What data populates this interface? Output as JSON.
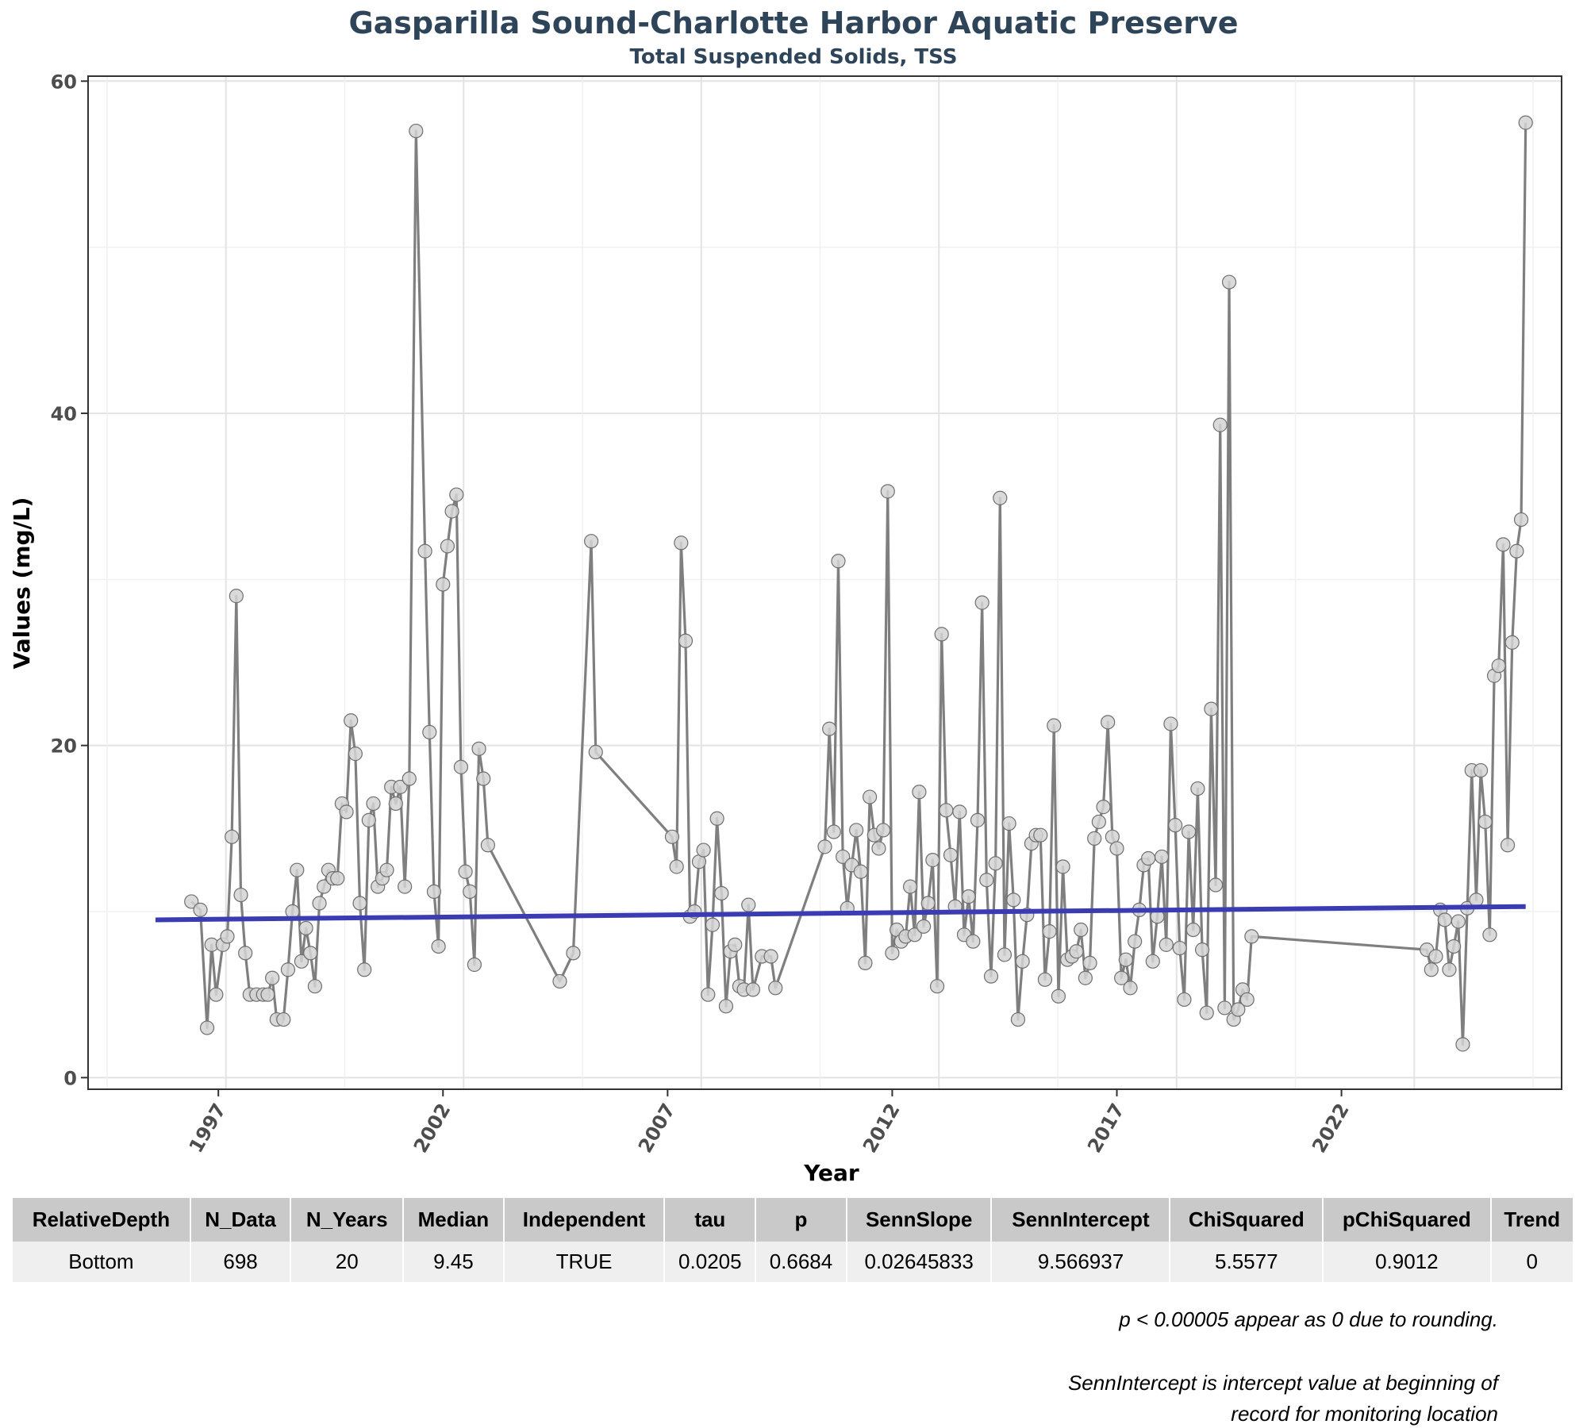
{
  "chart_data": {
    "type": "line",
    "title": "Gasparilla Sound-Charlotte Harbor Aquatic Preserve",
    "subtitle": "Total Suspended Solids, TSS",
    "xlabel": "Year",
    "ylabel": "Values (mg/L)",
    "xlim": [
      1994.1,
      2025.1
    ],
    "ylim": [
      -0.7,
      60.3
    ],
    "x_ticks": [
      1997,
      2002,
      2007,
      2012,
      2017,
      2022
    ],
    "x_tick_labels": [
      "1997",
      "2002",
      "2007",
      "2012",
      "2017",
      "2022"
    ],
    "y_ticks": [
      0,
      20,
      40,
      60
    ],
    "y_tick_labels": [
      "0",
      "20",
      "40",
      "60"
    ],
    "grid": true,
    "series": [
      {
        "marker": "circle",
        "color": "#7f7f7f",
        "points": [
          [
            1996.4,
            10.6
          ],
          [
            1996.6,
            10.1
          ],
          [
            1996.75,
            3.0
          ],
          [
            1996.85,
            8.0
          ],
          [
            1996.95,
            5.0
          ],
          [
            1997.1,
            8.0
          ],
          [
            1997.2,
            8.5
          ],
          [
            1997.3,
            14.5
          ],
          [
            1997.4,
            29.0
          ],
          [
            1997.5,
            11.0
          ],
          [
            1997.6,
            7.5
          ],
          [
            1997.7,
            5.0
          ],
          [
            1997.85,
            5.0
          ],
          [
            1998.0,
            5.0
          ],
          [
            1998.1,
            5.0
          ],
          [
            1998.2,
            6.0
          ],
          [
            1998.3,
            3.5
          ],
          [
            1998.45,
            3.5
          ],
          [
            1998.55,
            6.5
          ],
          [
            1998.65,
            10.0
          ],
          [
            1998.75,
            12.5
          ],
          [
            1998.85,
            7.0
          ],
          [
            1998.95,
            9.0
          ],
          [
            1999.05,
            7.5
          ],
          [
            1999.15,
            5.5
          ],
          [
            1999.25,
            10.5
          ],
          [
            1999.35,
            11.5
          ],
          [
            1999.45,
            12.5
          ],
          [
            1999.55,
            12.0
          ],
          [
            1999.65,
            12.0
          ],
          [
            1999.75,
            16.5
          ],
          [
            1999.85,
            16.0
          ],
          [
            1999.95,
            21.5
          ],
          [
            2000.05,
            19.5
          ],
          [
            2000.15,
            10.5
          ],
          [
            2000.25,
            6.5
          ],
          [
            2000.35,
            15.5
          ],
          [
            2000.45,
            16.5
          ],
          [
            2000.55,
            11.5
          ],
          [
            2000.65,
            12.0
          ],
          [
            2000.75,
            12.5
          ],
          [
            2000.85,
            17.5
          ],
          [
            2000.95,
            16.5
          ],
          [
            2001.05,
            17.5
          ],
          [
            2001.15,
            11.5
          ],
          [
            2001.25,
            18.0
          ],
          [
            2001.4,
            57.0
          ],
          [
            2001.6,
            31.7
          ],
          [
            2001.7,
            20.8
          ],
          [
            2001.8,
            11.2
          ],
          [
            2001.9,
            7.9
          ],
          [
            2002.0,
            29.7
          ],
          [
            2002.1,
            32.0
          ],
          [
            2002.2,
            34.1
          ],
          [
            2002.3,
            35.1
          ],
          [
            2002.4,
            18.7
          ],
          [
            2002.5,
            12.4
          ],
          [
            2002.6,
            11.2
          ],
          [
            2002.7,
            6.8
          ],
          [
            2002.8,
            19.8
          ],
          [
            2002.9,
            18.0
          ],
          [
            2003.0,
            14.0
          ],
          [
            2004.6,
            5.8
          ],
          [
            2004.9,
            7.5
          ],
          [
            2005.3,
            32.3
          ],
          [
            2005.4,
            19.6
          ],
          [
            2007.1,
            14.5
          ],
          [
            2007.2,
            12.7
          ],
          [
            2007.3,
            32.2
          ],
          [
            2007.4,
            26.3
          ],
          [
            2007.5,
            9.7
          ],
          [
            2007.6,
            10.0
          ],
          [
            2007.7,
            13.0
          ],
          [
            2007.8,
            13.7
          ],
          [
            2007.9,
            5.0
          ],
          [
            2008.0,
            9.2
          ],
          [
            2008.1,
            15.6
          ],
          [
            2008.2,
            11.1
          ],
          [
            2008.3,
            4.3
          ],
          [
            2008.4,
            7.6
          ],
          [
            2008.5,
            8.0
          ],
          [
            2008.6,
            5.5
          ],
          [
            2008.7,
            5.3
          ],
          [
            2008.8,
            10.4
          ],
          [
            2008.9,
            5.3
          ],
          [
            2009.1,
            7.3
          ],
          [
            2009.3,
            7.3
          ],
          [
            2009.4,
            5.4
          ],
          [
            2010.5,
            13.9
          ],
          [
            2010.6,
            21.0
          ],
          [
            2010.7,
            14.8
          ],
          [
            2010.8,
            31.1
          ],
          [
            2010.9,
            13.3
          ],
          [
            2011.0,
            10.2
          ],
          [
            2011.1,
            12.8
          ],
          [
            2011.2,
            14.9
          ],
          [
            2011.3,
            12.4
          ],
          [
            2011.4,
            6.9
          ],
          [
            2011.5,
            16.9
          ],
          [
            2011.6,
            14.6
          ],
          [
            2011.7,
            13.8
          ],
          [
            2011.8,
            14.9
          ],
          [
            2011.9,
            35.3
          ],
          [
            2012.0,
            7.5
          ],
          [
            2012.1,
            8.9
          ],
          [
            2012.2,
            8.2
          ],
          [
            2012.3,
            8.5
          ],
          [
            2012.4,
            11.5
          ],
          [
            2012.5,
            8.6
          ],
          [
            2012.6,
            17.2
          ],
          [
            2012.7,
            9.1
          ],
          [
            2012.8,
            10.5
          ],
          [
            2012.9,
            13.1
          ],
          [
            2013.0,
            5.5
          ],
          [
            2013.1,
            26.7
          ],
          [
            2013.2,
            16.1
          ],
          [
            2013.3,
            13.4
          ],
          [
            2013.4,
            10.3
          ],
          [
            2013.5,
            16.0
          ],
          [
            2013.6,
            8.6
          ],
          [
            2013.7,
            10.9
          ],
          [
            2013.8,
            8.2
          ],
          [
            2013.9,
            15.5
          ],
          [
            2014.0,
            28.6
          ],
          [
            2014.1,
            11.9
          ],
          [
            2014.2,
            6.1
          ],
          [
            2014.3,
            12.9
          ],
          [
            2014.4,
            34.9
          ],
          [
            2014.5,
            7.4
          ],
          [
            2014.6,
            15.3
          ],
          [
            2014.7,
            10.7
          ],
          [
            2014.8,
            3.5
          ],
          [
            2014.9,
            7.0
          ],
          [
            2015.0,
            9.8
          ],
          [
            2015.1,
            14.1
          ],
          [
            2015.2,
            14.6
          ],
          [
            2015.3,
            14.6
          ],
          [
            2015.4,
            5.9
          ],
          [
            2015.5,
            8.8
          ],
          [
            2015.6,
            21.2
          ],
          [
            2015.7,
            4.9
          ],
          [
            2015.8,
            12.7
          ],
          [
            2015.9,
            7.1
          ],
          [
            2016.0,
            7.3
          ],
          [
            2016.1,
            7.6
          ],
          [
            2016.2,
            8.9
          ],
          [
            2016.3,
            6.0
          ],
          [
            2016.4,
            6.9
          ],
          [
            2016.5,
            14.4
          ],
          [
            2016.6,
            15.4
          ],
          [
            2016.7,
            16.3
          ],
          [
            2016.8,
            21.4
          ],
          [
            2016.9,
            14.5
          ],
          [
            2017.0,
            13.8
          ],
          [
            2017.1,
            6.0
          ],
          [
            2017.2,
            7.1
          ],
          [
            2017.3,
            5.4
          ],
          [
            2017.4,
            8.2
          ],
          [
            2017.5,
            10.1
          ],
          [
            2017.6,
            12.8
          ],
          [
            2017.7,
            13.2
          ],
          [
            2017.8,
            7.0
          ],
          [
            2017.9,
            9.7
          ],
          [
            2018.0,
            13.3
          ],
          [
            2018.1,
            8.0
          ],
          [
            2018.2,
            21.3
          ],
          [
            2018.3,
            15.2
          ],
          [
            2018.4,
            7.8
          ],
          [
            2018.5,
            4.7
          ],
          [
            2018.6,
            14.8
          ],
          [
            2018.7,
            8.9
          ],
          [
            2018.8,
            17.4
          ],
          [
            2018.9,
            7.7
          ],
          [
            2019.0,
            3.9
          ],
          [
            2019.1,
            22.2
          ],
          [
            2019.2,
            11.6
          ],
          [
            2019.3,
            39.3
          ],
          [
            2019.4,
            4.2
          ],
          [
            2019.5,
            47.9
          ],
          [
            2019.6,
            3.5
          ],
          [
            2019.7,
            4.1
          ],
          [
            2019.8,
            5.3
          ],
          [
            2019.9,
            4.7
          ],
          [
            2020.0,
            8.5
          ],
          [
            2023.9,
            7.7
          ],
          [
            2024.0,
            6.5
          ],
          [
            2024.1,
            7.3
          ],
          [
            2024.2,
            10.1
          ],
          [
            2024.3,
            9.5
          ],
          [
            2024.4,
            6.5
          ],
          [
            2024.5,
            7.9
          ],
          [
            2024.6,
            9.4
          ],
          [
            2024.7,
            2.0
          ],
          [
            2024.8,
            10.2
          ],
          [
            2024.9,
            18.5
          ],
          [
            2025.0,
            10.7
          ],
          [
            2025.1,
            18.5
          ],
          [
            2025.2,
            15.4
          ],
          [
            2025.3,
            8.6
          ],
          [
            2025.4,
            24.2
          ],
          [
            2025.5,
            24.8
          ],
          [
            2025.6,
            32.1
          ],
          [
            2025.7,
            14.0
          ],
          [
            2025.8,
            26.2
          ],
          [
            2025.9,
            31.7
          ],
          [
            2026.0,
            33.6
          ],
          [
            2026.1,
            57.5
          ]
        ]
      },
      {
        "type": "trend",
        "color": "#3b3bb3",
        "points": [
          [
            1995.6,
            9.5
          ],
          [
            2026.1,
            10.3
          ]
        ]
      }
    ]
  },
  "table": {
    "headers": [
      "RelativeDepth",
      "N_Data",
      "N_Years",
      "Median",
      "Independent",
      "tau",
      "p",
      "SennSlope",
      "SennIntercept",
      "ChiSquared",
      "pChiSquared",
      "Trend"
    ],
    "rows": [
      [
        "Bottom",
        "698",
        "20",
        "9.45",
        "TRUE",
        "0.0205",
        "0.6684",
        "0.02645833",
        "9.566937",
        "5.5577",
        "0.9012",
        "0"
      ]
    ]
  },
  "notes": {
    "rounding": "p < 0.00005 appear as 0 due to rounding.",
    "intercept_line1": "SennIntercept is intercept value at beginning of",
    "intercept_line2": "record for monitoring location"
  }
}
